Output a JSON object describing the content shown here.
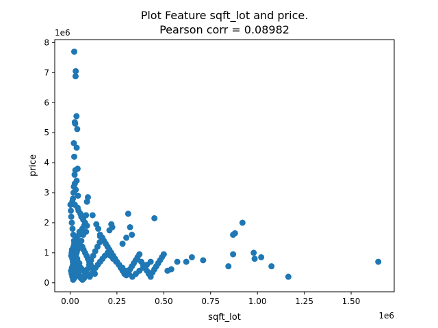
{
  "chart_data": {
    "type": "scatter",
    "title": "Plot Feature sqft_lot and price.",
    "subtitle": "Pearson corr = 0.08982",
    "xlabel": "sqft_lot",
    "ylabel": "price",
    "x_offset_label": "1e6",
    "y_offset_label": "1e6",
    "x_ticks": [
      0.0,
      0.25,
      0.5,
      0.75,
      1.0,
      1.25,
      1.5
    ],
    "x_tick_labels": [
      "0.00",
      "0.25",
      "0.50",
      "0.75",
      "1.00",
      "1.25",
      "1.50"
    ],
    "y_ticks": [
      0,
      1,
      2,
      3,
      4,
      5,
      6,
      7,
      8
    ],
    "y_tick_labels": [
      "0",
      "1",
      "2",
      "3",
      "4",
      "5",
      "6",
      "7",
      "8"
    ],
    "xlim": [
      -0.082,
      1.73
    ],
    "ylim": [
      -0.3,
      8.1
    ],
    "grid": false,
    "point_color": "#1f77b4",
    "series": [
      {
        "x": [
          0.022,
          0.03,
          0.029,
          0.034,
          0.025,
          0.027,
          0.038,
          0.02,
          0.035,
          0.022,
          0.04,
          0.028,
          0.024,
          0.035,
          0.025,
          0.02,
          0.03,
          0.018,
          0.042,
          0.015,
          0.012,
          0.025,
          0.04,
          0.045,
          0.055,
          0.06,
          0.07,
          0.08,
          0.095,
          0.09,
          0.085,
          0.075,
          0.065,
          0.05,
          0.048,
          0.035,
          0.03,
          0.022,
          0.018,
          0.01,
          0.008,
          0.006,
          0.012,
          0.015,
          0.02,
          0.028,
          0.033,
          0.045,
          0.052,
          0.058,
          0.065,
          0.072,
          0.08,
          0.088,
          0.095,
          0.102,
          0.11,
          0.118,
          0.125,
          0.132,
          0.14,
          0.15,
          0.16,
          0.172,
          0.18,
          0.19,
          0.2,
          0.21,
          0.22,
          0.23,
          0.24,
          0.25,
          0.26,
          0.27,
          0.28,
          0.29,
          0.3,
          0.31,
          0.32,
          0.33,
          0.34,
          0.35,
          0.36,
          0.37,
          0.38,
          0.39,
          0.4,
          0.41,
          0.42,
          0.43,
          0.44,
          0.45,
          0.46,
          0.47,
          0.48,
          0.49,
          0.5,
          0.52,
          0.54,
          0.572,
          0.62,
          0.65,
          0.71,
          0.845,
          0.87,
          0.88,
          0.87,
          0.92,
          0.98,
          0.985,
          1.02,
          1.075,
          1.165,
          1.645,
          0.45,
          0.31,
          0.32,
          0.33,
          0.3,
          0.28,
          0.22,
          0.225,
          0.21,
          0.16,
          0.12,
          0.09,
          0.085,
          0.07,
          0.06,
          0.05,
          0.045,
          0.04,
          0.035,
          0.03,
          0.025,
          0.02,
          0.015,
          0.01,
          0.005,
          0.008,
          0.012,
          0.016,
          0.022,
          0.026,
          0.031,
          0.037,
          0.043,
          0.049,
          0.056,
          0.063,
          0.071,
          0.079,
          0.087,
          0.096,
          0.105,
          0.115,
          0.125,
          0.136,
          0.148,
          0.16,
          0.173,
          0.186,
          0.2,
          0.215,
          0.23,
          0.246,
          0.262,
          0.279,
          0.296,
          0.314,
          0.332,
          0.351,
          0.37,
          0.39,
          0.41,
          0.43,
          0.002,
          0.004,
          0.006,
          0.009,
          0.013,
          0.017,
          0.021,
          0.026,
          0.032,
          0.038,
          0.044,
          0.051,
          0.058,
          0.066,
          0.074,
          0.083,
          0.092,
          0.102,
          0.112,
          0.123,
          0.134,
          0.146,
          0.158,
          0.171
        ],
        "y": [
          7.7,
          7.05,
          6.88,
          5.55,
          5.35,
          5.3,
          5.12,
          4.65,
          4.5,
          4.2,
          3.8,
          3.75,
          3.6,
          3.4,
          3.3,
          3.2,
          3.1,
          3.0,
          2.9,
          2.8,
          2.7,
          2.6,
          2.5,
          2.4,
          2.3,
          2.2,
          2.1,
          2.0,
          2.85,
          2.7,
          2.25,
          1.9,
          1.8,
          1.7,
          1.6,
          1.5,
          1.4,
          1.3,
          1.2,
          1.1,
          1.0,
          0.9,
          0.8,
          0.7,
          0.6,
          0.5,
          0.4,
          0.3,
          0.2,
          0.15,
          1.2,
          1.1,
          1.0,
          0.9,
          0.8,
          0.7,
          0.6,
          0.5,
          0.4,
          0.3,
          1.95,
          1.8,
          1.6,
          1.5,
          1.4,
          1.3,
          1.2,
          1.1,
          1.0,
          0.9,
          0.8,
          0.7,
          0.6,
          0.5,
          0.4,
          0.3,
          0.25,
          0.35,
          0.45,
          0.55,
          0.65,
          0.75,
          0.85,
          0.95,
          0.7,
          0.6,
          0.5,
          0.4,
          0.3,
          0.2,
          0.35,
          0.45,
          0.55,
          0.65,
          0.75,
          0.85,
          0.95,
          0.4,
          0.45,
          0.7,
          0.7,
          0.85,
          0.75,
          0.55,
          1.6,
          1.65,
          0.95,
          2.0,
          1.0,
          0.8,
          0.85,
          0.55,
          0.2,
          0.7,
          2.15,
          2.3,
          1.85,
          1.6,
          1.5,
          1.3,
          1.95,
          1.85,
          1.75,
          1.55,
          2.25,
          1.9,
          1.7,
          1.6,
          1.4,
          1.3,
          1.2,
          1.1,
          1.0,
          0.9,
          0.8,
          0.7,
          0.6,
          0.5,
          0.4,
          0.3,
          0.2,
          0.1,
          0.15,
          0.25,
          0.35,
          0.45,
          0.55,
          0.65,
          0.5,
          0.45,
          0.4,
          0.35,
          0.3,
          0.25,
          0.2,
          0.3,
          0.4,
          0.5,
          0.6,
          0.7,
          0.8,
          0.9,
          1.0,
          0.9,
          0.8,
          0.7,
          0.6,
          0.5,
          0.4,
          0.3,
          0.2,
          0.3,
          0.4,
          0.5,
          0.6,
          0.7,
          2.6,
          2.4,
          2.2,
          2.0,
          1.8,
          1.6,
          1.4,
          1.2,
          1.0,
          0.8,
          0.6,
          0.4,
          0.2,
          0.1,
          0.15,
          0.3,
          0.45,
          0.6,
          0.75,
          0.9,
          1.05,
          1.2,
          1.35,
          1.5
        ]
      }
    ]
  }
}
